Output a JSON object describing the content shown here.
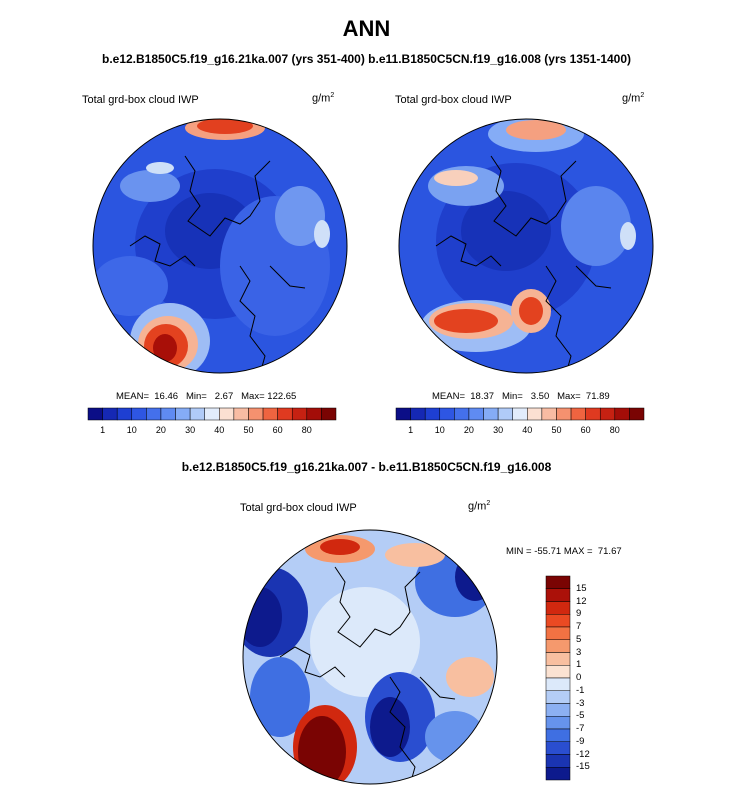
{
  "page": {
    "title": "ANN",
    "runs_header": "b.e12.B1850C5.f19_g16.21ka.007 (yrs 351-400) b.e11.B1850C5CN.f19_g16.008 (yrs 1351-1400)",
    "diff_header": "b.e12.B1850C5.f19_g16.21ka.007 - b.e11.B1850C5CN.f19_g16.008"
  },
  "panels": [
    {
      "title": "Total grd-box cloud IWP",
      "unit": "g/m",
      "unit_exp": "2",
      "stats": "MEAN=  16.46   Min=   2.67   Max= 122.65"
    },
    {
      "title": "Total grd-box cloud IWP",
      "unit": "g/m",
      "unit_exp": "2",
      "stats": "MEAN=  18.37   Min=   3.50   Max=  71.89"
    },
    {
      "title": "Total grd-box cloud IWP",
      "unit": "g/m",
      "unit_exp": "2",
      "stats": "MIN = -55.71 MAX =  71.67"
    }
  ],
  "colorbar_abs": {
    "labels": [
      "1",
      "10",
      "20",
      "30",
      "40",
      "50",
      "60",
      "80"
    ],
    "colors": [
      "#0b0e87",
      "#1528b4",
      "#1e3fd2",
      "#2e56e3",
      "#4470ec",
      "#5f8bf2",
      "#85acf6",
      "#b0cbf8",
      "#e2ecfb",
      "#fbe0d2",
      "#f8bca3",
      "#f5916f",
      "#ef6440",
      "#df3a20",
      "#c62112",
      "#a30d08",
      "#7a0403"
    ]
  },
  "colorbar_diff": {
    "labels": [
      "15",
      "12",
      "9",
      "7",
      "5",
      "3",
      "1",
      "0",
      "-1",
      "-3",
      "-5",
      "-7",
      "-9",
      "-12",
      "-15"
    ],
    "colors": [
      "#7a0403",
      "#ab1109",
      "#d1280f",
      "#ea4a23",
      "#f27243",
      "#f5996d",
      "#f8bfa0",
      "#fbe2d2",
      "#dce9fa",
      "#b4cdf6",
      "#8cb0f2",
      "#6693ec",
      "#3f6fe2",
      "#2a4ed0",
      "#1a34b2",
      "#0d1a8d"
    ]
  }
}
